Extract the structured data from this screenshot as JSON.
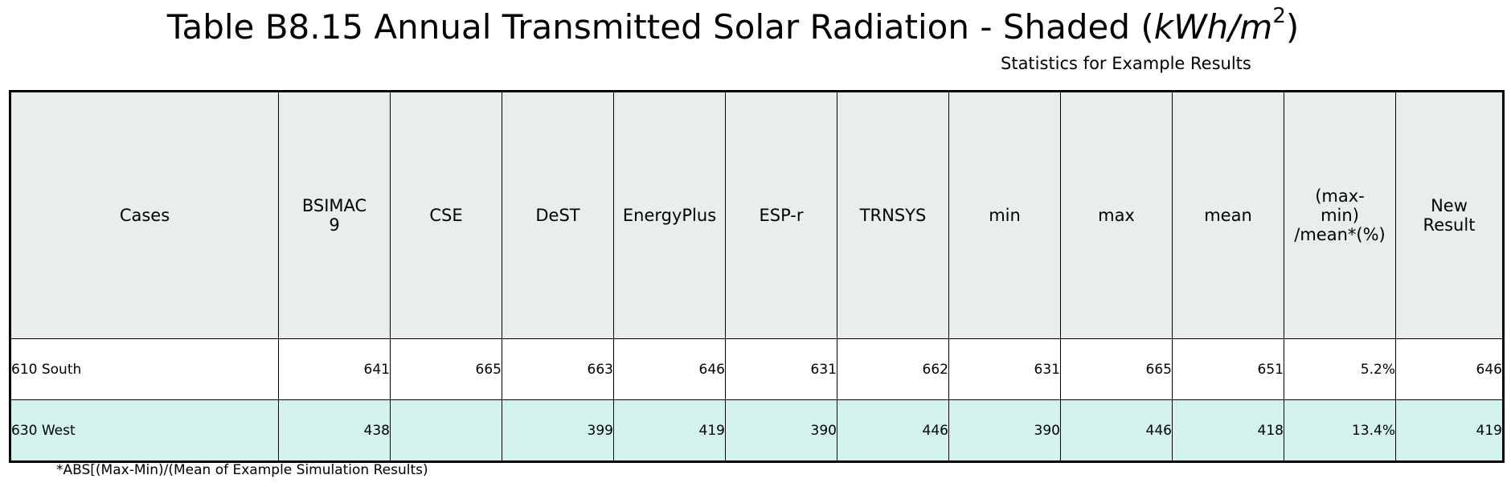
{
  "title": {
    "text": "Table B8.15 Annual Transmitted Solar Radiation - Shaded (",
    "unit": "kWh/m",
    "unit_exponent": "2",
    "close": ")"
  },
  "subtitle": "Statistics for Example Results",
  "footnote": "*ABS[(Max-Min)/(Mean of Example Simulation Results)",
  "colors": {
    "header_bg": "#e9edeb",
    "row_white": "#ffffff",
    "row_mint": "#d3f3ec",
    "border": "#000000"
  },
  "chart_data": {
    "type": "table",
    "columns": [
      {
        "label": "Cases",
        "lines": [
          "Cases"
        ]
      },
      {
        "label": "BSIMAC 9",
        "lines": [
          "BSIMAC",
          "9"
        ]
      },
      {
        "label": "CSE",
        "lines": [
          "CSE"
        ]
      },
      {
        "label": "DeST",
        "lines": [
          "DeST"
        ]
      },
      {
        "label": "EnergyPlus",
        "lines": [
          "EnergyPlus"
        ]
      },
      {
        "label": "ESP-r",
        "lines": [
          "ESP-r"
        ]
      },
      {
        "label": "TRNSYS",
        "lines": [
          "TRNSYS"
        ]
      },
      {
        "label": "min",
        "lines": [
          "min"
        ]
      },
      {
        "label": "max",
        "lines": [
          "max"
        ]
      },
      {
        "label": "mean",
        "lines": [
          "mean"
        ]
      },
      {
        "label": "(max-min) /mean*(%)",
        "lines": [
          "(max-",
          "min)",
          "/mean*(%)"
        ]
      },
      {
        "label": "New Result",
        "lines": [
          "New",
          "Result"
        ]
      }
    ],
    "rows": [
      [
        "610 South",
        "641",
        "665",
        "663",
        "646",
        "631",
        "662",
        "631",
        "665",
        "651",
        "5.2%",
        "646"
      ],
      [
        "630 West",
        "438",
        "",
        "399",
        "419",
        "390",
        "446",
        "390",
        "446",
        "418",
        "13.4%",
        "419"
      ]
    ]
  }
}
